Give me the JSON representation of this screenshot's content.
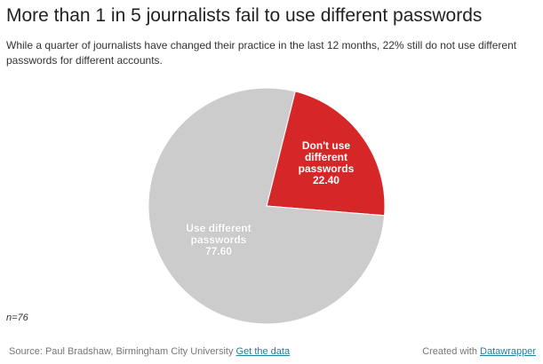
{
  "chart_data": {
    "type": "pie",
    "title": "More than 1 in 5 journalists fail to use different passwords",
    "subtitle": "While a quarter of journalists have changed their practice in the last 12 months, 22% still do not use different passwords for different accounts.",
    "categories": [
      "Don't use different passwords",
      "Use different passwords"
    ],
    "values": [
      22.4,
      77.6
    ],
    "value_labels": [
      "22.40",
      "77.60"
    ],
    "colors": [
      "#d62728",
      "#cccccc"
    ],
    "note": "n=76",
    "source": "Source: Paul Bradshaw, Birmingham City University",
    "data_link": "Get the data",
    "credit": "Created with",
    "credit_link": "Datawrapper"
  }
}
